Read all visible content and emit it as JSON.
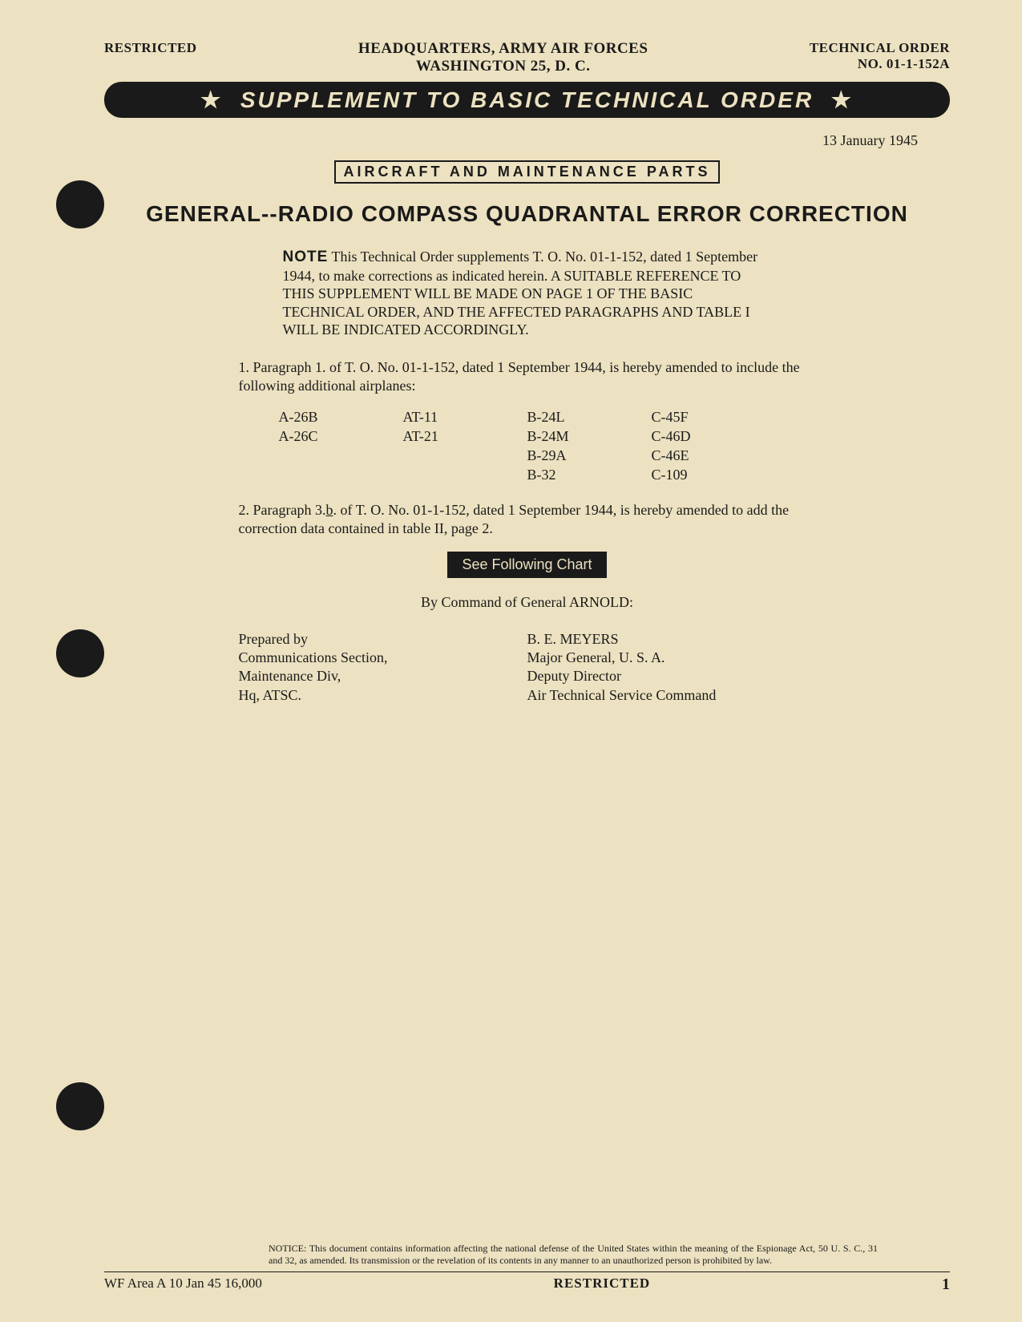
{
  "header": {
    "classification": "RESTRICTED",
    "center_line1": "HEADQUARTERS, ARMY AIR FORCES",
    "center_line2": "WASHINGTON 25, D. C.",
    "right_line1": "TECHNICAL ORDER",
    "right_line2": "NO. 01-1-152A"
  },
  "banner": "SUPPLEMENT TO BASIC TECHNICAL ORDER",
  "date": "13 January 1945",
  "category_box": "AIRCRAFT AND MAINTENANCE PARTS",
  "main_title": "GENERAL--RADIO COMPASS QUADRANTAL ERROR CORRECTION",
  "note": {
    "label": "NOTE",
    "text": "This Technical Order supplements T. O. No. 01-1-152, dated 1 September 1944, to make corrections as indicated herein. A SUITABLE REFERENCE TO THIS SUPPLEMENT WILL BE MADE ON PAGE 1 OF THE BASIC TECHNICAL ORDER, AND THE AFFECTED PARAGRAPHS AND TABLE I WILL BE INDICATED ACCORDINGLY."
  },
  "para1": "1. Paragraph 1. of T. O. No. 01-1-152, dated 1 September 1944, is hereby amended to include the following additional airplanes:",
  "airplanes": {
    "col1": [
      "A-26B",
      "A-26C"
    ],
    "col2": [
      "AT-11",
      "AT-21"
    ],
    "col3": [
      "B-24L",
      "B-24M",
      "B-29A",
      "B-32"
    ],
    "col4": [
      "C-45F",
      "C-46D",
      "C-46E",
      "C-109"
    ]
  },
  "para2_pre": "2. Paragraph 3.",
  "para2_underlined": "b",
  "para2_post": ". of T. O. No. 01-1-152, dated 1 September 1944, is hereby amended to add the correction data contained in table II, page 2.",
  "see_chart": "See Following Chart",
  "command_line": "By Command of General ARNOLD:",
  "prepared_by": {
    "line1": "Prepared by",
    "line2": "Communications Section,",
    "line3": "Maintenance Div,",
    "line4": "Hq, ATSC."
  },
  "signer": {
    "name": "B. E. MEYERS",
    "line2": "Major General, U. S. A.",
    "line3": "Deputy Director",
    "line4": "Air Technical Service Command"
  },
  "notice": "NOTICE: This document contains information affecting the national defense of the United States within the meaning of the Espionage Act, 50 U. S. C., 31 and 32, as amended. Its transmission or the revelation of its contents in any manner to an unauthorized person is prohibited by law.",
  "footer": {
    "left": "WF Area A  10 Jan 45  16,000",
    "center": "RESTRICTED",
    "page": "1"
  }
}
